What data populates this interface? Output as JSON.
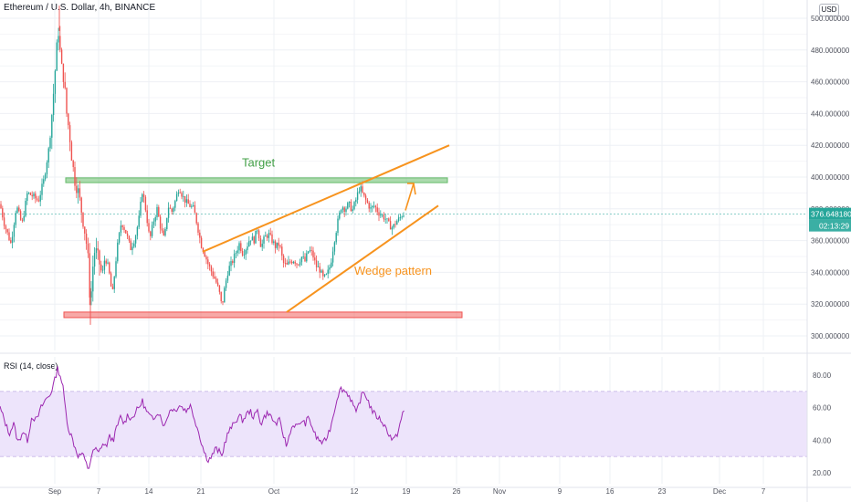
{
  "header": {
    "symbol_title": "Ethereum / U.S. Dollar, 4h, BINANCE",
    "currency": "USD"
  },
  "rsi_panel": {
    "title": "RSI (14, close)"
  },
  "colors": {
    "up": "#26a69a",
    "down": "#ef5350",
    "target_zone": "#66bb6a",
    "support_zone": "#ef5350",
    "wedge": "#f7931e",
    "rsi_line": "#9c27b0",
    "rsi_band": "#ede4fb",
    "badge": "#26a69a"
  },
  "price_badge": {
    "price": "376.648180",
    "countdown": "02:13:29"
  },
  "chart_data": [
    {
      "type": "candlestick",
      "title": "Ethereum / U.S. Dollar, 4h, BINANCE",
      "y_axis": {
        "ylim": [
          293,
          510
        ],
        "ticks": [
          300,
          320,
          340,
          360,
          380,
          400,
          420,
          440,
          460,
          480,
          500
        ],
        "tick_labels": [
          "300.000000",
          "320.000000",
          "340.000000",
          "360.000000",
          "380.000000",
          "400.000000",
          "420.000000",
          "440.000000",
          "460.000000",
          "480.000000",
          "500.000000"
        ]
      },
      "x_axis": {
        "tick_labels": [
          "Sep",
          "7",
          "14",
          "21",
          "Oct",
          "12",
          "19",
          "26",
          "Nov",
          "9",
          "16",
          "23",
          "Dec",
          "7"
        ]
      },
      "close_path": [
        [
          0,
          383
        ],
        [
          5,
          370
        ],
        [
          12,
          358
        ],
        [
          18,
          382
        ],
        [
          24,
          370
        ],
        [
          30,
          390
        ],
        [
          36,
          388
        ],
        [
          42,
          385
        ],
        [
          48,
          398
        ],
        [
          54,
          420
        ],
        [
          58,
          448
        ],
        [
          62,
          480
        ],
        [
          64,
          492
        ],
        [
          67,
          470
        ],
        [
          70,
          462
        ],
        [
          73,
          440
        ],
        [
          76,
          428
        ],
        [
          79,
          410
        ],
        [
          82,
          398
        ],
        [
          86,
          390
        ],
        [
          90,
          376
        ],
        [
          94,
          362
        ],
        [
          97,
          345
        ],
        [
          99,
          316
        ],
        [
          101,
          340
        ],
        [
          104,
          355
        ],
        [
          108,
          348
        ],
        [
          112,
          338
        ],
        [
          115,
          350
        ],
        [
          119,
          342
        ],
        [
          123,
          325
        ],
        [
          128,
          354
        ],
        [
          133,
          372
        ],
        [
          138,
          365
        ],
        [
          143,
          355
        ],
        [
          148,
          362
        ],
        [
          152,
          373
        ],
        [
          156,
          392
        ],
        [
          160,
          378
        ],
        [
          164,
          360
        ],
        [
          168,
          372
        ],
        [
          172,
          380
        ],
        [
          176,
          368
        ],
        [
          180,
          360
        ],
        [
          184,
          382
        ],
        [
          188,
          378
        ],
        [
          192,
          385
        ],
        [
          196,
          394
        ],
        [
          200,
          388
        ],
        [
          204,
          384
        ],
        [
          208,
          382
        ],
        [
          212,
          380
        ],
        [
          216,
          370
        ],
        [
          220,
          358
        ],
        [
          224,
          352
        ],
        [
          228,
          345
        ],
        [
          232,
          340
        ],
        [
          236,
          335
        ],
        [
          240,
          328
        ],
        [
          243,
          318
        ],
        [
          246,
          330
        ],
        [
          250,
          342
        ],
        [
          254,
          346
        ],
        [
          258,
          352
        ],
        [
          262,
          358
        ],
        [
          266,
          352
        ],
        [
          270,
          356
        ],
        [
          274,
          362
        ],
        [
          278,
          360
        ],
        [
          282,
          368
        ],
        [
          286,
          356
        ],
        [
          290,
          362
        ],
        [
          294,
          364
        ],
        [
          298,
          360
        ],
        [
          302,
          356
        ],
        [
          306,
          358
        ],
        [
          310,
          346
        ],
        [
          314,
          344
        ],
        [
          318,
          347
        ],
        [
          322,
          348
        ],
        [
          326,
          345
        ],
        [
          330,
          350
        ],
        [
          334,
          347
        ],
        [
          338,
          354
        ],
        [
          342,
          352
        ],
        [
          346,
          344
        ],
        [
          350,
          342
        ],
        [
          354,
          336
        ],
        [
          358,
          338
        ],
        [
          362,
          345
        ],
        [
          366,
          360
        ],
        [
          370,
          372
        ],
        [
          374,
          382
        ],
        [
          378,
          380
        ],
        [
          382,
          383
        ],
        [
          386,
          379
        ],
        [
          390,
          386
        ],
        [
          394,
          394
        ],
        [
          398,
          388
        ],
        [
          402,
          384
        ],
        [
          406,
          380
        ],
        [
          410,
          382
        ],
        [
          414,
          378
        ],
        [
          418,
          376
        ],
        [
          422,
          374
        ],
        [
          426,
          370
        ],
        [
          430,
          368
        ],
        [
          434,
          372
        ],
        [
          438,
          374
        ],
        [
          441,
          377
        ],
        [
          443,
          376.6
        ]
      ],
      "zones": [
        {
          "label": "Target",
          "from": 396.5,
          "to": 399.5
        },
        {
          "label": "",
          "from": 311.5,
          "to": 315
        }
      ],
      "wedge_lines": {
        "upper": [
          [
            222,
            353
          ],
          [
            492,
            420
          ]
        ],
        "lower": [
          [
            314,
            315
          ],
          [
            480,
            382
          ]
        ]
      },
      "annotations": [
        "Target",
        "Wedge pattern"
      ],
      "last_price": 376.64818
    },
    {
      "type": "line",
      "title": "RSI (14, close)",
      "y_axis": {
        "ylim": [
          14,
          90
        ],
        "ticks": [
          20,
          40,
          60,
          80
        ],
        "tick_labels": [
          "20.00",
          "40.00",
          "60.00",
          "80.00"
        ]
      },
      "bands": {
        "upper": 70,
        "lower": 30
      },
      "series_path": [
        [
          0,
          60
        ],
        [
          5,
          52
        ],
        [
          10,
          44
        ],
        [
          15,
          50
        ],
        [
          20,
          38
        ],
        [
          25,
          46
        ],
        [
          30,
          40
        ],
        [
          35,
          55
        ],
        [
          40,
          52
        ],
        [
          45,
          60
        ],
        [
          50,
          65
        ],
        [
          55,
          68
        ],
        [
          60,
          77
        ],
        [
          63,
          84
        ],
        [
          66,
          80
        ],
        [
          69,
          72
        ],
        [
          72,
          58
        ],
        [
          75,
          47
        ],
        [
          78,
          43
        ],
        [
          82,
          36
        ],
        [
          86,
          30
        ],
        [
          90,
          32
        ],
        [
          94,
          26
        ],
        [
          97,
          22
        ],
        [
          100,
          30
        ],
        [
          104,
          35
        ],
        [
          108,
          32
        ],
        [
          112,
          38
        ],
        [
          116,
          36
        ],
        [
          120,
          42
        ],
        [
          124,
          40
        ],
        [
          128,
          48
        ],
        [
          132,
          54
        ],
        [
          136,
          50
        ],
        [
          140,
          56
        ],
        [
          144,
          53
        ],
        [
          148,
          57
        ],
        [
          152,
          60
        ],
        [
          156,
          64
        ],
        [
          160,
          58
        ],
        [
          164,
          55
        ],
        [
          168,
          52
        ],
        [
          172,
          58
        ],
        [
          176,
          55
        ],
        [
          180,
          48
        ],
        [
          184,
          56
        ],
        [
          188,
          60
        ],
        [
          192,
          58
        ],
        [
          196,
          62
        ],
        [
          200,
          60
        ],
        [
          204,
          58
        ],
        [
          208,
          62
        ],
        [
          212,
          55
        ],
        [
          216,
          48
        ],
        [
          220,
          40
        ],
        [
          224,
          32
        ],
        [
          228,
          28
        ],
        [
          232,
          30
        ],
        [
          236,
          35
        ],
        [
          240,
          33
        ],
        [
          243,
          30
        ],
        [
          246,
          38
        ],
        [
          250,
          45
        ],
        [
          254,
          48
        ],
        [
          258,
          52
        ],
        [
          262,
          55
        ],
        [
          266,
          52
        ],
        [
          270,
          56
        ],
        [
          274,
          58
        ],
        [
          278,
          54
        ],
        [
          282,
          58
        ],
        [
          286,
          50
        ],
        [
          290,
          55
        ],
        [
          294,
          57
        ],
        [
          298,
          53
        ],
        [
          302,
          50
        ],
        [
          306,
          52
        ],
        [
          310,
          44
        ],
        [
          314,
          36
        ],
        [
          318,
          46
        ],
        [
          322,
          50
        ],
        [
          326,
          48
        ],
        [
          330,
          52
        ],
        [
          334,
          50
        ],
        [
          338,
          54
        ],
        [
          342,
          48
        ],
        [
          346,
          42
        ],
        [
          350,
          40
        ],
        [
          354,
          38
        ],
        [
          358,
          42
        ],
        [
          362,
          48
        ],
        [
          366,
          58
        ],
        [
          370,
          68
        ],
        [
          374,
          72
        ],
        [
          378,
          70
        ],
        [
          382,
          68
        ],
        [
          386,
          63
        ],
        [
          390,
          56
        ],
        [
          394,
          64
        ],
        [
          398,
          70
        ],
        [
          402,
          66
        ],
        [
          406,
          60
        ],
        [
          410,
          56
        ],
        [
          414,
          54
        ],
        [
          418,
          52
        ],
        [
          422,
          48
        ],
        [
          426,
          44
        ],
        [
          430,
          40
        ],
        [
          434,
          42
        ],
        [
          438,
          50
        ],
        [
          441,
          56
        ],
        [
          443,
          58
        ]
      ]
    }
  ]
}
